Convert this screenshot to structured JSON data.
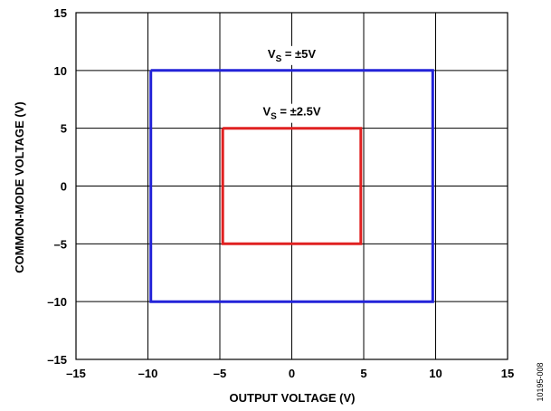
{
  "chart_data": {
    "type": "line",
    "xlabel": "OUTPUT VOLTAGE (V)",
    "ylabel": "COMMON-MODE VOLTAGE (V)",
    "xlim": [
      -15,
      15
    ],
    "ylim": [
      -15,
      15
    ],
    "xticks": [
      -15,
      -10,
      -5,
      0,
      5,
      10,
      15
    ],
    "yticks": [
      -15,
      -10,
      -5,
      0,
      5,
      10,
      15
    ],
    "tick_labels": [
      "–15",
      "–10",
      "–5",
      "0",
      "5",
      "10",
      "15"
    ],
    "grid": true,
    "series": [
      {
        "label_main": "V",
        "label_sub": "S",
        "label_rest": " = ±5V",
        "color": "#2323d8",
        "x": [
          -9.8,
          9.8,
          9.8,
          -9.8,
          -9.8
        ],
        "y": [
          10,
          10,
          -10,
          -10,
          10
        ]
      },
      {
        "label_main": "V",
        "label_sub": "S",
        "label_rest": " = ±2.5V",
        "color": "#e02020",
        "x": [
          -4.8,
          4.8,
          4.8,
          -4.8,
          -4.8
        ],
        "y": [
          5,
          5,
          -5,
          -5,
          5
        ]
      }
    ]
  },
  "figure_id": "10195-008"
}
